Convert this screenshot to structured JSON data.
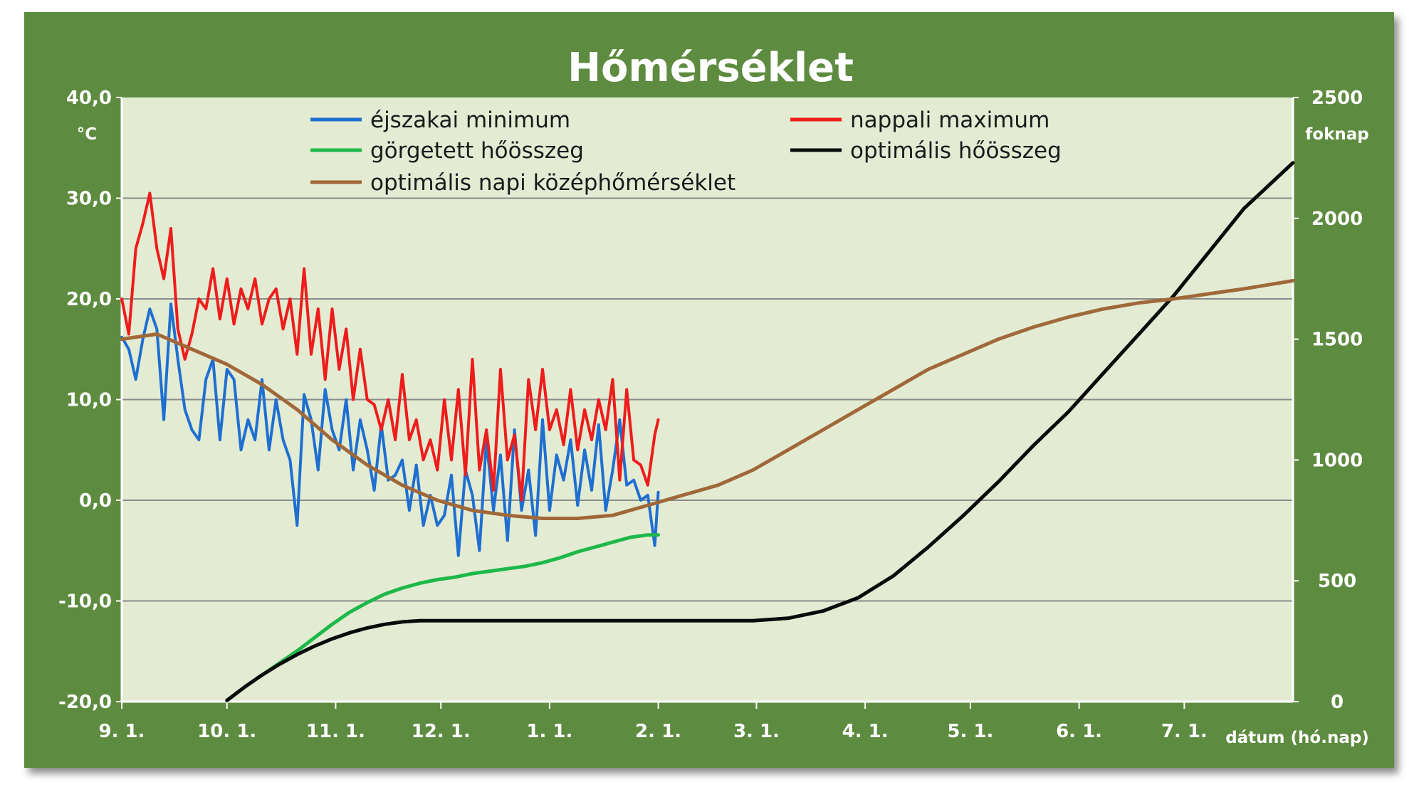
{
  "chart_data": {
    "type": "line",
    "title": "Hőmérséklet",
    "y_left": {
      "unit": "°C",
      "range": [
        -20,
        40
      ],
      "ticks": [
        "-20,0",
        "-10,0",
        "0,0",
        "10,0",
        "20,0",
        "30,0",
        "40,0"
      ]
    },
    "y_right": {
      "unit": "foknap",
      "range": [
        0,
        2500
      ],
      "ticks": [
        "0",
        "500",
        "1000",
        "1500",
        "2000",
        "2500"
      ]
    },
    "x_axis": {
      "label": "dátum (hó.nap)",
      "range_days": [
        0,
        334
      ],
      "ticks": [
        "9. 1.",
        "10. 1.",
        "11. 1.",
        "12. 1.",
        "1. 1.",
        "2. 1.",
        "3. 1.",
        "4. 1.",
        "5. 1.",
        "6. 1.",
        "7. 1."
      ],
      "tick_days": [
        0,
        30,
        61,
        91,
        122,
        153,
        181,
        212,
        242,
        273,
        303
      ]
    },
    "grid": "horizontal",
    "legend": "top, two columns",
    "series": [
      {
        "name": "éjszakai minimum",
        "color": "#1f6fd1",
        "axis": "left",
        "width": 4,
        "x": [
          0,
          2,
          4,
          6,
          8,
          10,
          12,
          14,
          16,
          18,
          20,
          22,
          24,
          26,
          28,
          30,
          32,
          34,
          36,
          38,
          40,
          42,
          44,
          46,
          48,
          50,
          52,
          54,
          56,
          58,
          60,
          62,
          64,
          66,
          68,
          70,
          72,
          74,
          76,
          78,
          80,
          82,
          84,
          86,
          88,
          90,
          92,
          94,
          96,
          98,
          100,
          102,
          104,
          106,
          108,
          110,
          112,
          114,
          116,
          118,
          120,
          122,
          124,
          126,
          128,
          130,
          132,
          134,
          136,
          138,
          140,
          142,
          144,
          146,
          148,
          150,
          152,
          153
        ],
        "y": [
          16.2,
          15.0,
          12.0,
          16.0,
          19.0,
          17.0,
          8.0,
          19.5,
          14.0,
          9.0,
          7.0,
          6.0,
          12.0,
          14.0,
          6.0,
          13.0,
          12.0,
          5.0,
          8.0,
          6.0,
          12.0,
          5.0,
          10.0,
          6.0,
          4.0,
          -2.5,
          10.5,
          8.0,
          3.0,
          11.0,
          7.0,
          5.0,
          10.0,
          3.0,
          8.0,
          5.0,
          1.0,
          7.5,
          2.0,
          2.5,
          4.0,
          -1.0,
          3.5,
          -2.5,
          0.5,
          -2.5,
          -1.5,
          2.5,
          -5.5,
          3.0,
          0.5,
          -5.0,
          6.0,
          -1.0,
          4.5,
          -4.0,
          7.0,
          -1.0,
          3.0,
          -3.5,
          8.0,
          -1.0,
          4.5,
          2.0,
          6.0,
          -0.5,
          5.0,
          1.0,
          7.5,
          -1.0,
          3.0,
          8.0,
          1.5,
          2.0,
          0.0,
          0.5,
          -4.5,
          0.8
        ]
      },
      {
        "name": "nappali maximum",
        "color": "#ef1c1c",
        "axis": "left",
        "width": 4,
        "x": [
          0,
          2,
          4,
          6,
          8,
          10,
          12,
          14,
          16,
          18,
          20,
          22,
          24,
          26,
          28,
          30,
          32,
          34,
          36,
          38,
          40,
          42,
          44,
          46,
          48,
          50,
          52,
          54,
          56,
          58,
          60,
          62,
          64,
          66,
          68,
          70,
          72,
          74,
          76,
          78,
          80,
          82,
          84,
          86,
          88,
          90,
          92,
          94,
          96,
          98,
          100,
          102,
          104,
          106,
          108,
          110,
          112,
          114,
          116,
          118,
          120,
          122,
          124,
          126,
          128,
          130,
          132,
          134,
          136,
          138,
          140,
          142,
          144,
          146,
          148,
          150,
          152,
          153
        ],
        "y": [
          20.0,
          16.5,
          25.0,
          27.5,
          30.5,
          25.0,
          22.0,
          27.0,
          17.0,
          14.0,
          16.5,
          20.0,
          19.0,
          23.0,
          18.0,
          22.0,
          17.5,
          21.0,
          19.0,
          22.0,
          17.5,
          20.0,
          21.0,
          17.0,
          20.0,
          14.5,
          23.0,
          14.5,
          19.0,
          12.0,
          19.0,
          13.0,
          17.0,
          10.0,
          15.0,
          10.0,
          9.5,
          7.0,
          10.0,
          6.0,
          12.5,
          6.0,
          8.0,
          4.0,
          6.0,
          3.0,
          10.0,
          4.0,
          11.0,
          2.5,
          14.0,
          3.0,
          7.0,
          1.0,
          13.0,
          4.0,
          6.5,
          0.0,
          12.0,
          7.0,
          13.0,
          7.0,
          9.0,
          5.5,
          11.0,
          5.0,
          9.0,
          6.0,
          10.0,
          7.0,
          12.0,
          2.0,
          11.0,
          4.0,
          3.5,
          1.5,
          6.5,
          8.0
        ]
      },
      {
        "name": "görgetett hőösszeg",
        "color": "#1eb84a",
        "axis": "right",
        "width": 5,
        "x": [
          30,
          35,
          40,
          45,
          50,
          55,
          60,
          65,
          70,
          75,
          80,
          85,
          90,
          95,
          100,
          105,
          110,
          115,
          120,
          125,
          130,
          135,
          140,
          145,
          150,
          153
        ],
        "y": [
          5,
          60,
          110,
          160,
          210,
          265,
          320,
          370,
          410,
          445,
          470,
          490,
          505,
          515,
          530,
          540,
          550,
          560,
          575,
          595,
          620,
          640,
          660,
          680,
          690,
          690
        ]
      },
      {
        "name": "optimális hőösszeg",
        "color": "#0a0a0a",
        "axis": "right",
        "width": 5,
        "x": [
          30,
          35,
          40,
          45,
          50,
          55,
          60,
          65,
          70,
          75,
          80,
          85,
          90,
          95,
          100,
          110,
          120,
          130,
          140,
          150,
          160,
          170,
          180,
          190,
          200,
          210,
          220,
          230,
          240,
          250,
          260,
          270,
          280,
          290,
          300,
          310,
          320,
          334
        ],
        "y": [
          5,
          60,
          110,
          155,
          195,
          230,
          260,
          285,
          305,
          320,
          330,
          335,
          335,
          335,
          335,
          335,
          335,
          335,
          335,
          335,
          335,
          335,
          335,
          345,
          375,
          430,
          520,
          640,
          770,
          910,
          1060,
          1200,
          1360,
          1520,
          1680,
          1860,
          2040,
          2230
        ]
      },
      {
        "name": "optimális napi középhőmérséklet",
        "color": "#a0683a",
        "axis": "left",
        "width": 5,
        "x": [
          0,
          10,
          20,
          30,
          40,
          50,
          60,
          70,
          80,
          90,
          100,
          110,
          120,
          130,
          140,
          150,
          160,
          170,
          180,
          190,
          200,
          210,
          220,
          230,
          240,
          250,
          260,
          270,
          280,
          290,
          300,
          310,
          320,
          334
        ],
        "y": [
          16.0,
          16.5,
          15.0,
          13.5,
          11.5,
          9.0,
          6.0,
          3.5,
          1.5,
          0.0,
          -1.0,
          -1.5,
          -1.8,
          -1.8,
          -1.5,
          -0.5,
          0.5,
          1.5,
          3.0,
          5.0,
          7.0,
          9.0,
          11.0,
          13.0,
          14.5,
          16.0,
          17.2,
          18.2,
          19.0,
          19.6,
          20.0,
          20.5,
          21.0,
          21.8
        ]
      }
    ]
  }
}
